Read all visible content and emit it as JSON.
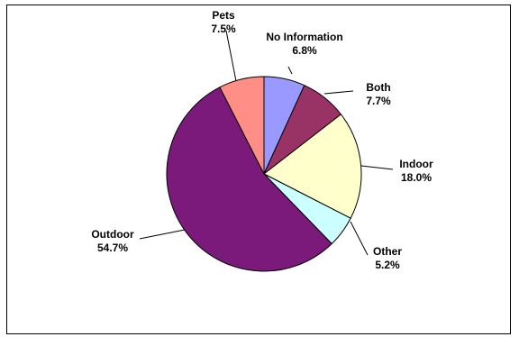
{
  "chart_data": {
    "type": "pie",
    "title": "",
    "legend": "none",
    "slices": [
      {
        "label": "No Information",
        "value_label": "6.8%",
        "value": 6.8,
        "color": "#9999ff"
      },
      {
        "label": "Both",
        "value_label": "7.7%",
        "value": 7.7,
        "color": "#993366"
      },
      {
        "label": "Indoor",
        "value_label": "18.0%",
        "value": 18.0,
        "color": "#ffffcc"
      },
      {
        "label": "Other",
        "value_label": "5.2%",
        "value": 5.2,
        "color": "#ccffff"
      },
      {
        "label": "Outdoor",
        "value_label": "54.7%",
        "value": 54.7,
        "color": "#7b1a7b"
      },
      {
        "label": "Pets",
        "value_label": "7.5%",
        "value": 7.5,
        "color": "#ff8f86"
      }
    ]
  }
}
